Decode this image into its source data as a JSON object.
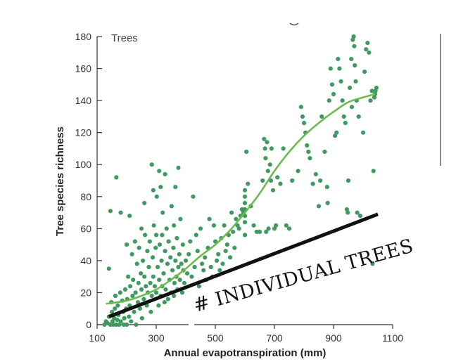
{
  "chart_data": {
    "type": "scatter",
    "panel_label": "Trees",
    "xlabel": "Annual evapotranspiration (mm)",
    "ylabel": "Tree species richness",
    "xlim": [
      100,
      1100
    ],
    "ylim": [
      0,
      180
    ],
    "xticks": [
      100,
      300,
      500,
      700,
      900,
      1100
    ],
    "yticks": [
      0,
      20,
      40,
      60,
      80,
      100,
      120,
      140,
      160,
      180
    ],
    "grid": false,
    "colors": {
      "points": "#3f9a5f",
      "fit": "#6dbb4f",
      "annotation": "#111111"
    },
    "points": [
      [
        125,
        0
      ],
      [
        130,
        2
      ],
      [
        135,
        1
      ],
      [
        140,
        5
      ],
      [
        140,
        35
      ],
      [
        145,
        71
      ],
      [
        145,
        0
      ],
      [
        148,
        14
      ],
      [
        150,
        8
      ],
      [
        152,
        2
      ],
      [
        155,
        0
      ],
      [
        158,
        4
      ],
      [
        160,
        10
      ],
      [
        162,
        18
      ],
      [
        165,
        92
      ],
      [
        165,
        0
      ],
      [
        168,
        3
      ],
      [
        170,
        12
      ],
      [
        172,
        6
      ],
      [
        175,
        0
      ],
      [
        178,
        20
      ],
      [
        180,
        70
      ],
      [
        180,
        2
      ],
      [
        185,
        15
      ],
      [
        188,
        8
      ],
      [
        190,
        0
      ],
      [
        192,
        4
      ],
      [
        195,
        22
      ],
      [
        198,
        10
      ],
      [
        200,
        50
      ],
      [
        200,
        0
      ],
      [
        202,
        16
      ],
      [
        205,
        30
      ],
      [
        208,
        5
      ],
      [
        210,
        68
      ],
      [
        210,
        12
      ],
      [
        212,
        24
      ],
      [
        215,
        2
      ],
      [
        218,
        44
      ],
      [
        220,
        18
      ],
      [
        222,
        28
      ],
      [
        225,
        8
      ],
      [
        228,
        52
      ],
      [
        230,
        20
      ],
      [
        232,
        0
      ],
      [
        235,
        38
      ],
      [
        238,
        14
      ],
      [
        240,
        26
      ],
      [
        242,
        48
      ],
      [
        245,
        10
      ],
      [
        248,
        32
      ],
      [
        250,
        60
      ],
      [
        250,
        22
      ],
      [
        252,
        4
      ],
      [
        255,
        40
      ],
      [
        258,
        16
      ],
      [
        260,
        76
      ],
      [
        260,
        30
      ],
      [
        262,
        56
      ],
      [
        265,
        24
      ],
      [
        268,
        12
      ],
      [
        270,
        46
      ],
      [
        272,
        20
      ],
      [
        275,
        36
      ],
      [
        278,
        52
      ],
      [
        280,
        26
      ],
      [
        282,
        8
      ],
      [
        285,
        100
      ],
      [
        285,
        18
      ],
      [
        288,
        42
      ],
      [
        290,
        84
      ],
      [
        290,
        30
      ],
      [
        292,
        62
      ],
      [
        295,
        24
      ],
      [
        298,
        48
      ],
      [
        300,
        56
      ],
      [
        300,
        20
      ],
      [
        302,
        80
      ],
      [
        305,
        36
      ],
      [
        308,
        12
      ],
      [
        310,
        96
      ],
      [
        310,
        28
      ],
      [
        312,
        50
      ],
      [
        315,
        86
      ],
      [
        315,
        18
      ],
      [
        318,
        40
      ],
      [
        320,
        56
      ],
      [
        320,
        24
      ],
      [
        322,
        70
      ],
      [
        325,
        32
      ],
      [
        328,
        14
      ],
      [
        330,
        94
      ],
      [
        330,
        46
      ],
      [
        332,
        22
      ],
      [
        335,
        60
      ],
      [
        338,
        38
      ],
      [
        340,
        16
      ],
      [
        342,
        52
      ],
      [
        345,
        28
      ],
      [
        348,
        42
      ],
      [
        350,
        20
      ],
      [
        352,
        74
      ],
      [
        355,
        34
      ],
      [
        358,
        48
      ],
      [
        360,
        62
      ],
      [
        360,
        18
      ],
      [
        362,
        26
      ],
      [
        365,
        86
      ],
      [
        365,
        40
      ],
      [
        368,
        30
      ],
      [
        370,
        54
      ],
      [
        372,
        22
      ],
      [
        375,
        98
      ],
      [
        375,
        36
      ],
      [
        378,
        44
      ],
      [
        380,
        28
      ],
      [
        382,
        66
      ],
      [
        385,
        38
      ],
      [
        388,
        20
      ],
      [
        390,
        50
      ],
      [
        392,
        34
      ],
      [
        395,
        26
      ],
      [
        400,
        40
      ],
      [
        405,
        32
      ],
      [
        410,
        44
      ],
      [
        415,
        52
      ],
      [
        420,
        30
      ],
      [
        425,
        80
      ],
      [
        430,
        36
      ],
      [
        435,
        56
      ],
      [
        440,
        46
      ],
      [
        445,
        24
      ],
      [
        450,
        60
      ],
      [
        455,
        38
      ],
      [
        460,
        34
      ],
      [
        465,
        42
      ],
      [
        470,
        28
      ],
      [
        475,
        48
      ],
      [
        480,
        66
      ],
      [
        485,
        36
      ],
      [
        490,
        30
      ],
      [
        495,
        62
      ],
      [
        500,
        52
      ],
      [
        505,
        40
      ],
      [
        510,
        44
      ],
      [
        515,
        34
      ],
      [
        520,
        54
      ],
      [
        525,
        38
      ],
      [
        530,
        62
      ],
      [
        535,
        46
      ],
      [
        540,
        50
      ],
      [
        545,
        56
      ],
      [
        550,
        42
      ],
      [
        555,
        70
      ],
      [
        560,
        58
      ],
      [
        565,
        48
      ],
      [
        570,
        66
      ],
      [
        575,
        62
      ],
      [
        580,
        60
      ],
      [
        585,
        68
      ],
      [
        590,
        72
      ],
      [
        595,
        70
      ],
      [
        600,
        84
      ],
      [
        600,
        80
      ],
      [
        600,
        76
      ],
      [
        600,
        72
      ],
      [
        600,
        68
      ],
      [
        600,
        64
      ],
      [
        600,
        56
      ],
      [
        605,
        108
      ],
      [
        610,
        88
      ],
      [
        620,
        74
      ],
      [
        630,
        62
      ],
      [
        640,
        58
      ],
      [
        650,
        58
      ],
      [
        660,
        90
      ],
      [
        665,
        116
      ],
      [
        668,
        110
      ],
      [
        670,
        104
      ],
      [
        672,
        58
      ],
      [
        675,
        114
      ],
      [
        678,
        96
      ],
      [
        680,
        60
      ],
      [
        685,
        100
      ],
      [
        688,
        90
      ],
      [
        690,
        110
      ],
      [
        695,
        84
      ],
      [
        700,
        60
      ],
      [
        705,
        62
      ],
      [
        710,
        92
      ],
      [
        720,
        88
      ],
      [
        730,
        110
      ],
      [
        740,
        62
      ],
      [
        750,
        60
      ],
      [
        760,
        90
      ],
      [
        780,
        96
      ],
      [
        790,
        136
      ],
      [
        795,
        130
      ],
      [
        800,
        126
      ],
      [
        805,
        120
      ],
      [
        810,
        112
      ],
      [
        815,
        108
      ],
      [
        820,
        104
      ],
      [
        830,
        88
      ],
      [
        840,
        94
      ],
      [
        850,
        74
      ],
      [
        855,
        90
      ],
      [
        860,
        130
      ],
      [
        870,
        108
      ],
      [
        878,
        86
      ],
      [
        880,
        76
      ],
      [
        885,
        140
      ],
      [
        890,
        160
      ],
      [
        895,
        150
      ],
      [
        900,
        144
      ],
      [
        905,
        118
      ],
      [
        910,
        120
      ],
      [
        915,
        166
      ],
      [
        920,
        160
      ],
      [
        925,
        152
      ],
      [
        930,
        140
      ],
      [
        935,
        130
      ],
      [
        940,
        126
      ],
      [
        945,
        72
      ],
      [
        948,
        70
      ],
      [
        950,
        90
      ],
      [
        955,
        148
      ],
      [
        960,
        166
      ],
      [
        962,
        136
      ],
      [
        965,
        178
      ],
      [
        968,
        180
      ],
      [
        970,
        174
      ],
      [
        972,
        162
      ],
      [
        975,
        152
      ],
      [
        978,
        140
      ],
      [
        980,
        70
      ],
      [
        985,
        130
      ],
      [
        990,
        68
      ],
      [
        1000,
        120
      ],
      [
        1005,
        158
      ],
      [
        1010,
        172
      ],
      [
        1015,
        176
      ],
      [
        1020,
        170
      ],
      [
        1025,
        140
      ],
      [
        1030,
        146
      ],
      [
        1032,
        38
      ],
      [
        1035,
        96
      ],
      [
        1038,
        142
      ],
      [
        1040,
        144
      ],
      [
        1042,
        146
      ],
      [
        1045,
        148
      ]
    ],
    "fit": [
      [
        130,
        13
      ],
      [
        200,
        15
      ],
      [
        250,
        18
      ],
      [
        300,
        22
      ],
      [
        350,
        28
      ],
      [
        400,
        35
      ],
      [
        450,
        43
      ],
      [
        500,
        50
      ],
      [
        550,
        59
      ],
      [
        600,
        70
      ],
      [
        650,
        82
      ],
      [
        700,
        96
      ],
      [
        750,
        108
      ],
      [
        800,
        118
      ],
      [
        850,
        126
      ],
      [
        900,
        133
      ],
      [
        950,
        139
      ],
      [
        1000,
        142
      ],
      [
        1040,
        144
      ]
    ],
    "annotation": {
      "text": "# INDIVIDUAL TREES",
      "line_start": [
        140,
        5
      ],
      "line_end": [
        1050,
        69
      ]
    }
  }
}
